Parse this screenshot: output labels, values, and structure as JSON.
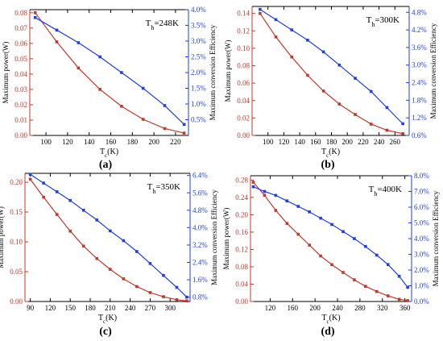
{
  "colors": {
    "power": "#c0392b",
    "efficiency": "#1f3fe0",
    "axis": "#000000"
  },
  "chart_data": [
    {
      "type": "line",
      "annotation_main": "T",
      "annotation_sub": "h",
      "annotation_tail": "=248K",
      "caption": "(a)",
      "xlabel_main": "T",
      "xlabel_sub": "c",
      "xlabel_tail": "(K)",
      "ylabel_left": "Maximum power(W)",
      "ylabel_right": "Maximum conversion Efficiency",
      "xlim": [
        85,
        232
      ],
      "ylim_left": [
        0,
        0.082
      ],
      "ylim_right": [
        0.0,
        4.0
      ],
      "x_ticks": [
        100,
        120,
        140,
        160,
        180,
        200,
        220
      ],
      "y_left_ticks": [
        "0.00",
        "0.01",
        "0.02",
        "0.03",
        "0.04",
        "0.05",
        "0.06",
        "0.07",
        "0.08"
      ],
      "y_left_tick_values": [
        0.0,
        0.01,
        0.02,
        0.03,
        0.04,
        0.05,
        0.06,
        0.07,
        0.08
      ],
      "y_right_ticks": [
        "0.5%",
        "1.0%",
        "1.5%",
        "2.0%",
        "2.5%",
        "3.0%",
        "3.5%",
        "4.0%"
      ],
      "y_right_tick_values": [
        0.5,
        1.0,
        1.5,
        2.0,
        2.5,
        3.0,
        3.5,
        4.0
      ],
      "series": [
        {
          "axis": "left",
          "color": "power",
          "marker": "square",
          "x": [
            90,
            110,
            130,
            150,
            170,
            190,
            210,
            228
          ],
          "y": [
            0.08,
            0.061,
            0.044,
            0.03,
            0.019,
            0.0105,
            0.0045,
            0.0015
          ]
        },
        {
          "axis": "right",
          "color": "efficiency",
          "marker": "square",
          "x": [
            90,
            110,
            130,
            150,
            170,
            190,
            210,
            228
          ],
          "y": [
            3.75,
            3.35,
            2.95,
            2.5,
            2.0,
            1.5,
            0.95,
            0.35
          ]
        }
      ]
    },
    {
      "type": "line",
      "annotation_main": "T",
      "annotation_sub": "h",
      "annotation_tail": "=300K",
      "caption": "(b)",
      "xlabel_main": "T",
      "xlabel_sub": "c",
      "xlabel_tail": "(K)",
      "ylabel_left": "Maximum power(W)",
      "ylabel_right": "Maximum conversion Efficiency",
      "xlim": [
        80,
        278
      ],
      "ylim_left": [
        0,
        0.148
      ],
      "ylim_right": [
        0.6,
        5.0
      ],
      "x_ticks": [
        100,
        120,
        140,
        160,
        180,
        200,
        220,
        240,
        260
      ],
      "y_left_ticks": [
        "0.00",
        "0.02",
        "0.04",
        "0.06",
        "0.08",
        "0.10",
        "0.12",
        "0.14"
      ],
      "y_left_tick_values": [
        0.0,
        0.02,
        0.04,
        0.06,
        0.08,
        0.1,
        0.12,
        0.14
      ],
      "y_right_ticks": [
        "0.6%",
        "1.2%",
        "1.8%",
        "2.4%",
        "3.0%",
        "3.6%",
        "4.2%",
        "4.8%"
      ],
      "y_right_tick_values": [
        0.6,
        1.2,
        1.8,
        2.4,
        3.0,
        3.6,
        4.2,
        4.8
      ],
      "series": [
        {
          "axis": "left",
          "color": "power",
          "marker": "square",
          "x": [
            90,
            110,
            130,
            150,
            170,
            190,
            210,
            230,
            250,
            270
          ],
          "y": [
            0.14,
            0.113,
            0.09,
            0.069,
            0.051,
            0.036,
            0.024,
            0.013,
            0.006,
            0.002
          ]
        },
        {
          "axis": "right",
          "color": "efficiency",
          "marker": "square",
          "x": [
            90,
            110,
            130,
            150,
            170,
            190,
            210,
            230,
            250,
            270
          ],
          "y": [
            4.9,
            4.55,
            4.2,
            3.85,
            3.45,
            3.0,
            2.55,
            2.1,
            1.55,
            1.0
          ]
        }
      ]
    },
    {
      "type": "line",
      "annotation_main": "T",
      "annotation_sub": "h",
      "annotation_tail": "=350K",
      "caption": "(c)",
      "xlabel_main": "T",
      "xlabel_sub": "c",
      "xlabel_tail": "(K)",
      "ylabel_left": "Maximum power(W)",
      "ylabel_right": "Maximum conversion Efficiency",
      "xlim": [
        82,
        330
      ],
      "ylim_left": [
        0,
        0.215
      ],
      "ylim_right": [
        0.6,
        6.5
      ],
      "x_ticks": [
        90,
        120,
        150,
        180,
        210,
        240,
        270,
        300
      ],
      "y_left_ticks": [
        "0.00",
        "0.05",
        "0.10",
        "0.15",
        "0.20"
      ],
      "y_left_tick_values": [
        0.0,
        0.05,
        0.1,
        0.15,
        0.2
      ],
      "y_right_ticks": [
        "0.8%",
        "1.6%",
        "2.4%",
        "3.2%",
        "4.0%",
        "4.8%",
        "5.6%",
        "6.4%"
      ],
      "y_right_tick_values": [
        0.8,
        1.6,
        2.4,
        3.2,
        4.0,
        4.8,
        5.6,
        6.4
      ],
      "series": [
        {
          "axis": "left",
          "color": "power",
          "marker": "square",
          "x": [
            90,
            110,
            130,
            150,
            170,
            190,
            210,
            230,
            250,
            270,
            290,
            310,
            325
          ],
          "y": [
            0.205,
            0.175,
            0.146,
            0.118,
            0.093,
            0.072,
            0.054,
            0.038,
            0.025,
            0.015,
            0.008,
            0.003,
            0.001
          ]
        },
        {
          "axis": "right",
          "color": "efficiency",
          "marker": "square",
          "x": [
            90,
            110,
            130,
            150,
            170,
            190,
            210,
            230,
            250,
            270,
            290,
            310,
            325
          ],
          "y": [
            6.45,
            6.05,
            5.65,
            5.25,
            4.8,
            4.35,
            3.85,
            3.4,
            2.9,
            2.35,
            1.8,
            1.25,
            0.8
          ]
        }
      ]
    },
    {
      "type": "line",
      "annotation_main": "T",
      "annotation_sub": "h",
      "annotation_tail": "=400K",
      "caption": "(d)",
      "xlabel_main": "T",
      "xlabel_sub": "c",
      "xlabel_tail": "(K)",
      "ylabel_left": "Maximum power(W)",
      "ylabel_right": "Maximum conversion Efficiency",
      "xlim": [
        85,
        372
      ],
      "ylim_left": [
        0,
        0.29
      ],
      "ylim_right": [
        0.0,
        8.0
      ],
      "x_ticks": [
        120,
        160,
        200,
        240,
        280,
        320,
        360
      ],
      "y_left_ticks": [
        "0.00",
        "0.04",
        "0.08",
        "0.12",
        "0.16",
        "0.20",
        "0.24",
        "0.28"
      ],
      "y_left_tick_values": [
        0.0,
        0.04,
        0.08,
        0.12,
        0.16,
        0.2,
        0.24,
        0.28
      ],
      "y_right_ticks": [
        "0.0%",
        "1.0%",
        "2.0%",
        "3.0%",
        "4.0%",
        "5.0%",
        "6.0%",
        "7.0%",
        "8.0%"
      ],
      "y_right_tick_values": [
        0.0,
        1.0,
        2.0,
        3.0,
        4.0,
        5.0,
        6.0,
        7.0,
        8.0
      ],
      "series": [
        {
          "axis": "left",
          "color": "power",
          "marker": "square",
          "x": [
            90,
            110,
            130,
            150,
            170,
            190,
            210,
            230,
            250,
            270,
            290,
            310,
            330,
            350,
            365
          ],
          "y": [
            0.275,
            0.245,
            0.21,
            0.18,
            0.155,
            0.13,
            0.105,
            0.085,
            0.067,
            0.05,
            0.035,
            0.023,
            0.013,
            0.005,
            0.002
          ]
        },
        {
          "axis": "right",
          "color": "efficiency",
          "marker": "square",
          "x": [
            90,
            110,
            130,
            150,
            170,
            190,
            210,
            230,
            250,
            270,
            290,
            310,
            330,
            350,
            365
          ],
          "y": [
            7.3,
            7.0,
            6.75,
            6.4,
            6.05,
            5.7,
            5.3,
            4.9,
            4.45,
            4.0,
            3.5,
            2.95,
            2.35,
            1.6,
            0.9
          ]
        }
      ]
    }
  ]
}
